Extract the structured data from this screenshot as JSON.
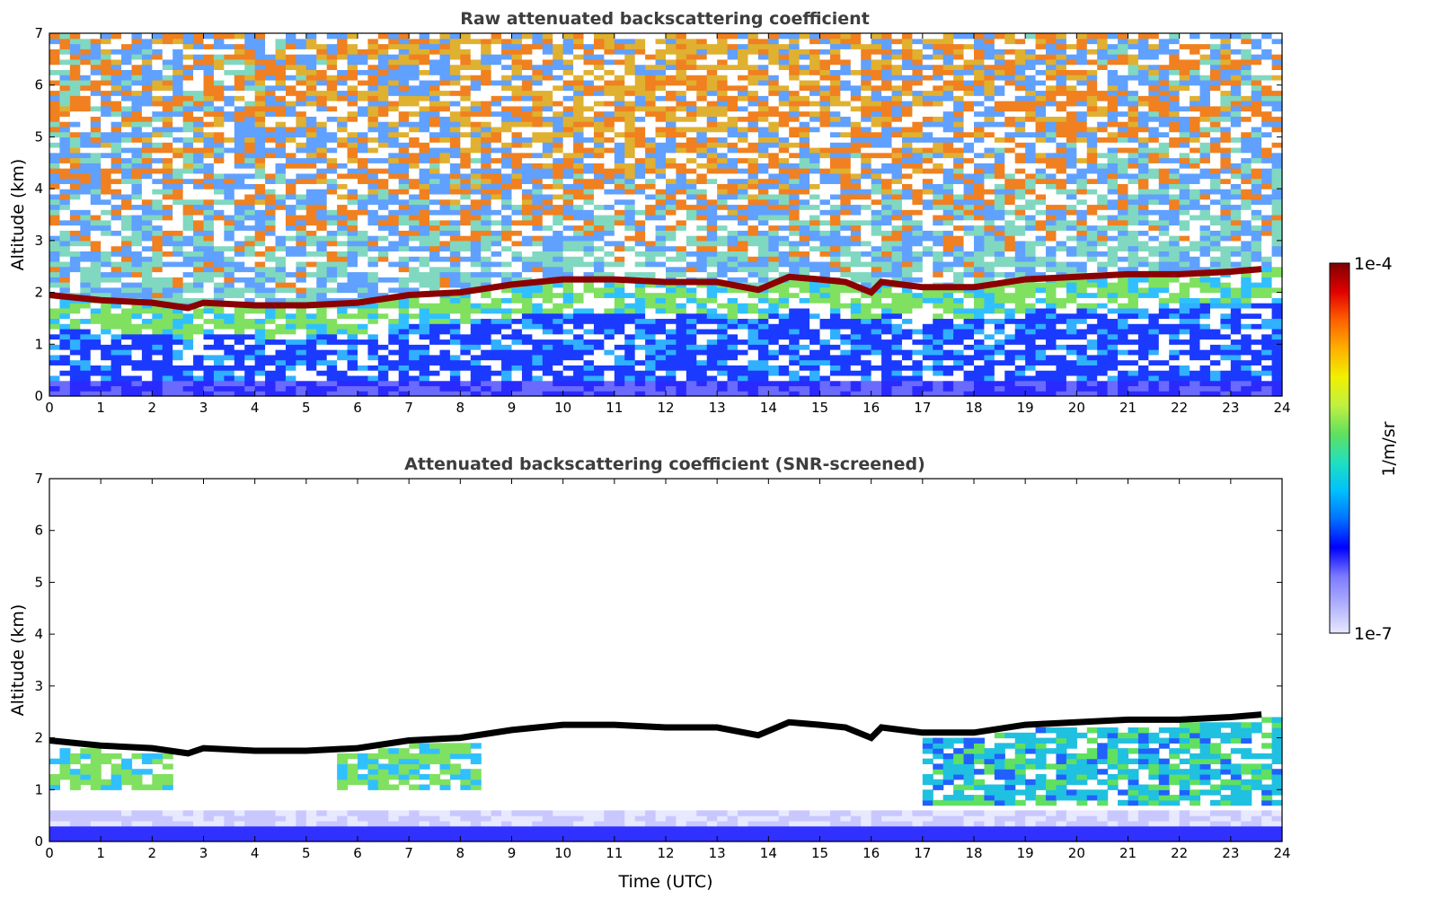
{
  "chart_data": [
    {
      "type": "heatmap",
      "title": "Raw attenuated backscattering coefficient",
      "xlabel": "",
      "ylabel": "Altitude (km)",
      "xlim": [
        0,
        24
      ],
      "ylim": [
        0,
        7
      ],
      "xticks": [
        "0",
        "1",
        "2",
        "3",
        "4",
        "5",
        "6",
        "7",
        "8",
        "9",
        "10",
        "11",
        "12",
        "13",
        "14",
        "15",
        "16",
        "17",
        "18",
        "19",
        "20",
        "21",
        "22",
        "23",
        "24"
      ],
      "yticks": [
        "0",
        "1",
        "2",
        "3",
        "4",
        "5",
        "6",
        "7"
      ],
      "cloud_layer_top_km": [
        {
          "x": 0,
          "y": 1.95
        },
        {
          "x": 1,
          "y": 1.85
        },
        {
          "x": 2,
          "y": 1.8
        },
        {
          "x": 2.7,
          "y": 1.7
        },
        {
          "x": 3,
          "y": 1.8
        },
        {
          "x": 4,
          "y": 1.75
        },
        {
          "x": 5,
          "y": 1.75
        },
        {
          "x": 6,
          "y": 1.8
        },
        {
          "x": 7,
          "y": 1.95
        },
        {
          "x": 8,
          "y": 2.0
        },
        {
          "x": 9,
          "y": 2.15
        },
        {
          "x": 10,
          "y": 2.25
        },
        {
          "x": 11,
          "y": 2.25
        },
        {
          "x": 12,
          "y": 2.2
        },
        {
          "x": 13,
          "y": 2.2
        },
        {
          "x": 13.8,
          "y": 2.05
        },
        {
          "x": 14.4,
          "y": 2.3
        },
        {
          "x": 15,
          "y": 2.25
        },
        {
          "x": 15.5,
          "y": 2.2
        },
        {
          "x": 16,
          "y": 2.0
        },
        {
          "x": 16.2,
          "y": 2.2
        },
        {
          "x": 17,
          "y": 2.1
        },
        {
          "x": 18,
          "y": 2.1
        },
        {
          "x": 19,
          "y": 2.25
        },
        {
          "x": 20,
          "y": 2.3
        },
        {
          "x": 21,
          "y": 2.35
        },
        {
          "x": 22,
          "y": 2.35
        },
        {
          "x": 23,
          "y": 2.4
        },
        {
          "x": 23.6,
          "y": 2.45
        }
      ],
      "colors": {
        "cloud_top": "#8b0000",
        "noise_high": "#e8701a",
        "noise_low": "#2030ff"
      }
    },
    {
      "type": "heatmap",
      "title": "Attenuated backscattering coefficient (SNR-screened)",
      "xlabel": "Time (UTC)",
      "ylabel": "Altitude (km)",
      "xlim": [
        0,
        24
      ],
      "ylim": [
        0,
        7
      ],
      "xticks": [
        "0",
        "1",
        "2",
        "3",
        "4",
        "5",
        "6",
        "7",
        "8",
        "9",
        "10",
        "11",
        "12",
        "13",
        "14",
        "15",
        "16",
        "17",
        "18",
        "19",
        "20",
        "21",
        "22",
        "23",
        "24"
      ],
      "yticks": [
        "0",
        "1",
        "2",
        "3",
        "4",
        "5",
        "6",
        "7"
      ],
      "colors": {
        "cloud_top": "#000000",
        "low_layer": "#5a5aff",
        "drizzle": "#20c0e0"
      }
    }
  ],
  "colorbar": {
    "label": "1/m/sr",
    "max_label": "1e-4",
    "min_label": "1e-7",
    "stops": [
      "#e8e8ff",
      "#b0b0ff",
      "#7a7aff",
      "#0000ff",
      "#0070ff",
      "#00c0ff",
      "#20e0c0",
      "#60e060",
      "#c0f040",
      "#f0f000",
      "#ffb000",
      "#ff6000",
      "#e00000",
      "#800000"
    ]
  }
}
